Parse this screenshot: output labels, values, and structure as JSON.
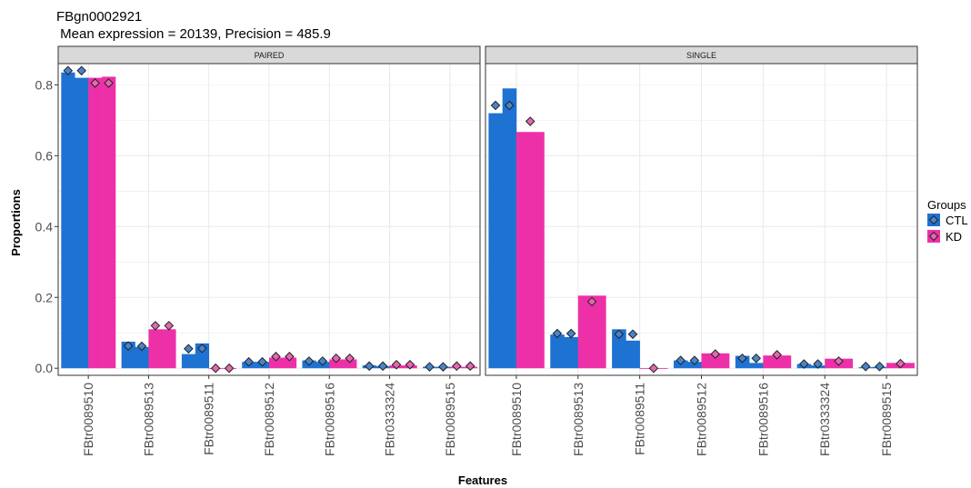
{
  "title": "FBgn0002921",
  "subtitle": " Mean expression = 20139, Precision = 485.9",
  "colors": {
    "CTL": "#1E72D2",
    "KD": "#EE30A8",
    "strip_bg": "#D9D9D9",
    "grid": "#EBEBEB"
  },
  "chart_data": {
    "type": "bar",
    "xlabel": "Features",
    "ylabel": "Proportions",
    "ylim": [
      -0.02,
      0.86
    ],
    "yticks": [
      "0.0",
      "0.2",
      "0.4",
      "0.6",
      "0.8"
    ],
    "ytick_values": [
      0,
      0.2,
      0.4,
      0.6,
      0.8
    ],
    "categories": [
      "FBtr0089510",
      "FBtr0089513",
      "FBtr0089511",
      "FBtr0089512",
      "FBtr0089516",
      "FBtr0333324",
      "FBtr0089515"
    ],
    "legend": {
      "title": "Groups",
      "placement": "right",
      "entries": [
        "CTL",
        "KD"
      ]
    },
    "panels": [
      {
        "name": "PAIRED",
        "series": [
          {
            "name": "CTL",
            "bars": [
              [
                0.835,
                0.82
              ],
              [
                0.075,
                0.06
              ],
              [
                0.04,
                0.07
              ],
              [
                0.018,
                0.018
              ],
              [
                0.022,
                0.018
              ],
              [
                0.008,
                0.006
              ],
              [
                0.004,
                0.004
              ]
            ],
            "points": [
              [
                0.84,
                0.84
              ],
              [
                0.063,
                0.062
              ],
              [
                0.055,
                0.056
              ],
              [
                0.018,
                0.018
              ],
              [
                0.02,
                0.02
              ],
              [
                0.006,
                0.006
              ],
              [
                0.004,
                0.004
              ]
            ]
          },
          {
            "name": "KD",
            "bars": [
              [
                0.82,
                0.823
              ],
              [
                0.11,
                0.11
              ],
              [
                0.0,
                0.0
              ],
              [
                0.03,
                0.03
              ],
              [
                0.025,
                0.025
              ],
              [
                0.008,
                0.008
              ],
              [
                0.004,
                0.004
              ]
            ],
            "points": [
              [
                0.805,
                0.805
              ],
              [
                0.12,
                0.12
              ],
              [
                0.0,
                0.0
              ],
              [
                0.033,
                0.033
              ],
              [
                0.028,
                0.028
              ],
              [
                0.01,
                0.01
              ],
              [
                0.006,
                0.006
              ]
            ]
          }
        ]
      },
      {
        "name": "SINGLE",
        "series": [
          {
            "name": "CTL",
            "bars": [
              [
                0.72,
                0.79
              ],
              [
                0.095,
                0.088
              ],
              [
                0.11,
                0.078
              ],
              [
                0.022,
                0.018
              ],
              [
                0.035,
                0.015
              ],
              [
                0.012,
                0.008
              ],
              [
                0.003,
                0.004
              ]
            ],
            "points": [
              [
                0.742,
                0.742
              ],
              [
                0.098,
                0.098
              ],
              [
                0.096,
                0.096
              ],
              [
                0.022,
                0.022
              ],
              [
                0.028,
                0.028
              ],
              [
                0.012,
                0.012
              ],
              [
                0.005,
                0.005
              ]
            ]
          },
          {
            "name": "KD",
            "bars": [
              [
                0.667
              ],
              [
                0.205
              ],
              [
                0.0
              ],
              [
                0.042
              ],
              [
                0.036
              ],
              [
                0.027
              ],
              [
                0.015
              ]
            ],
            "points": [
              [
                0.697
              ],
              [
                0.188
              ],
              [
                0.0
              ],
              [
                0.04
              ],
              [
                0.038
              ],
              [
                0.02
              ],
              [
                0.013
              ]
            ]
          }
        ]
      }
    ]
  }
}
